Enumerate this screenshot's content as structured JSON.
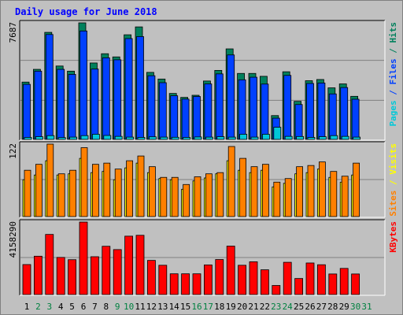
{
  "title": "Daily usage for June 2018",
  "colors": {
    "frame_bg": "#c0c0c0",
    "panel_bg": "#c0c0c0",
    "gridline": "#808080",
    "hits": "#00805c",
    "files": "#0040ff",
    "pages": "#00c8d8",
    "visits": "#ff8000",
    "sites": "#ffff00",
    "kbytes": "#ff0000",
    "weekend_label": "#008040",
    "weekday_label": "#000000"
  },
  "chart_data": [
    {
      "type": "bar",
      "panel": "hits_files_pages",
      "ymax_label": "7687",
      "ymax": 7687,
      "right_label": {
        "pages": "Pages",
        "sep1": " / ",
        "files": "Files",
        "sep2": " / ",
        "hits": "Hits"
      },
      "categories": [
        "1",
        "2",
        "3",
        "4",
        "5",
        "6",
        "7",
        "8",
        "9",
        "10",
        "11",
        "12",
        "13",
        "14",
        "15",
        "16",
        "17",
        "18",
        "19",
        "20",
        "21",
        "22",
        "23",
        "24",
        "25",
        "26",
        "27",
        "28",
        "29",
        "30",
        "31"
      ],
      "series": [
        {
          "name": "Hits",
          "values": [
            3780,
            4620,
            7060,
            4840,
            4500,
            7687,
            5040,
            5650,
            5440,
            6900,
            7420,
            4420,
            3980,
            3030,
            2770,
            2910,
            3850,
            4550,
            5970,
            4350,
            4350,
            4160,
            1570,
            4460,
            2510,
            3870,
            3950,
            3400,
            3660,
            2840,
            0
          ]
        },
        {
          "name": "Files",
          "values": [
            3630,
            4500,
            6920,
            4620,
            4290,
            7150,
            4640,
            5380,
            5250,
            6650,
            6780,
            4200,
            3740,
            2880,
            2660,
            2830,
            3660,
            4320,
            5570,
            3930,
            4100,
            3650,
            1400,
            4220,
            2300,
            3690,
            3720,
            3000,
            3420,
            2650,
            0
          ]
        },
        {
          "name": "Pages",
          "values": [
            130,
            180,
            250,
            120,
            150,
            250,
            340,
            260,
            200,
            150,
            130,
            170,
            150,
            140,
            130,
            160,
            150,
            180,
            150,
            340,
            150,
            340,
            800,
            200,
            190,
            130,
            180,
            250,
            200,
            150,
            0
          ]
        }
      ]
    },
    {
      "type": "bar",
      "panel": "visits_sites",
      "ymax_label": "122",
      "ymax": 122,
      "right_label": {
        "sites": "Sites",
        "sep": " / ",
        "visits": "Visits"
      },
      "categories": [
        "1",
        "2",
        "3",
        "4",
        "5",
        "6",
        "7",
        "8",
        "9",
        "10",
        "11",
        "12",
        "13",
        "14",
        "15",
        "16",
        "17",
        "18",
        "19",
        "20",
        "21",
        "22",
        "23",
        "24",
        "25",
        "26",
        "27",
        "28",
        "29",
        "30",
        "31"
      ],
      "series": [
        {
          "name": "Visits",
          "values": [
            78,
            88,
            122,
            72,
            78,
            116,
            88,
            90,
            80,
            94,
            102,
            84,
            66,
            66,
            54,
            67,
            72,
            74,
            118,
            98,
            84,
            88,
            58,
            64,
            84,
            86,
            92,
            76,
            68,
            90,
            0
          ]
        },
        {
          "name": "Sites",
          "values": [
            62,
            70,
            94,
            70,
            72,
            98,
            74,
            76,
            62,
            82,
            90,
            74,
            64,
            62,
            46,
            60,
            65,
            72,
            94,
            78,
            74,
            78,
            50,
            56,
            72,
            74,
            80,
            66,
            58,
            70,
            0
          ]
        }
      ]
    },
    {
      "type": "bar",
      "panel": "kbytes",
      "ymax_label": "4158290",
      "ymax": 4158290,
      "right_label": {
        "kbytes": "KBytes"
      },
      "categories": [
        "1",
        "2",
        "3",
        "4",
        "5",
        "6",
        "7",
        "8",
        "9",
        "10",
        "11",
        "12",
        "13",
        "14",
        "15",
        "16",
        "17",
        "18",
        "19",
        "20",
        "21",
        "22",
        "23",
        "24",
        "25",
        "26",
        "27",
        "28",
        "29",
        "30",
        "31"
      ],
      "series": [
        {
          "name": "KBytes",
          "values": [
            1720000,
            2200000,
            3450000,
            2130000,
            2000000,
            4158290,
            2170000,
            2770000,
            2580000,
            3350000,
            3400000,
            1960000,
            1680000,
            1190000,
            1190000,
            1190000,
            1700000,
            2010000,
            2780000,
            1680000,
            1880000,
            1420000,
            520000,
            1850000,
            920000,
            1810000,
            1710000,
            1180000,
            1500000,
            1180000,
            0
          ]
        }
      ]
    }
  ],
  "x_labels": [
    "1",
    "2",
    "3",
    "4",
    "5",
    "6",
    "7",
    "8",
    "9",
    "10",
    "11",
    "12",
    "13",
    "14",
    "15",
    "16",
    "17",
    "18",
    "19",
    "20",
    "21",
    "22",
    "23",
    "24",
    "25",
    "26",
    "27",
    "28",
    "29",
    "30",
    "31"
  ],
  "weekend_days": [
    2,
    3,
    9,
    10,
    16,
    17,
    23,
    24,
    30,
    31
  ]
}
